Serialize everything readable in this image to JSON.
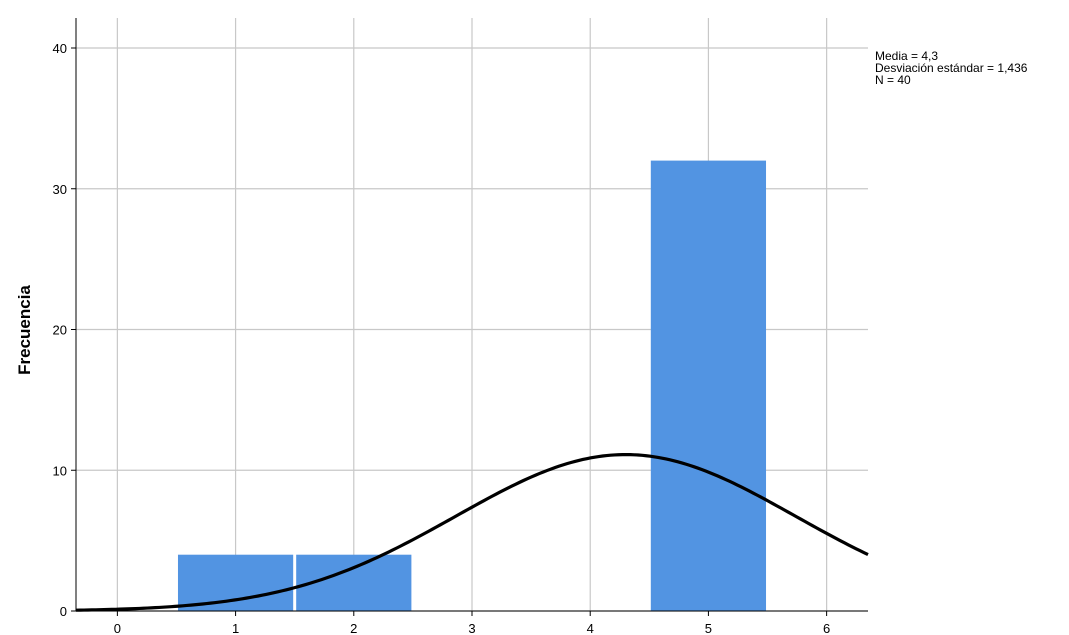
{
  "chart_data": {
    "type": "bar",
    "subtype": "histogram",
    "title": "",
    "xlabel": "",
    "ylabel": "Frecuencia",
    "xlim": [
      -0.35,
      6.35
    ],
    "ylim": [
      0,
      40
    ],
    "grid": true,
    "x_ticks": [
      0,
      1,
      2,
      3,
      4,
      5,
      6
    ],
    "y_ticks": [
      0,
      10,
      20,
      30,
      40
    ],
    "bars": [
      {
        "x": 1,
        "value": 4
      },
      {
        "x": 2,
        "value": 4
      },
      {
        "x": 5,
        "value": 32
      }
    ],
    "bar_color": "#5294e2",
    "curve": {
      "type": "normal",
      "mean": 4.3,
      "sd": 1.436,
      "n": 40,
      "bin_width": 1,
      "color": "#000000"
    },
    "legend_position": "top-right"
  },
  "stats": {
    "mean_line": "Media = 4,3",
    "sd_line": "Desviación estándar = 1,436",
    "n_line": "N = 40"
  }
}
